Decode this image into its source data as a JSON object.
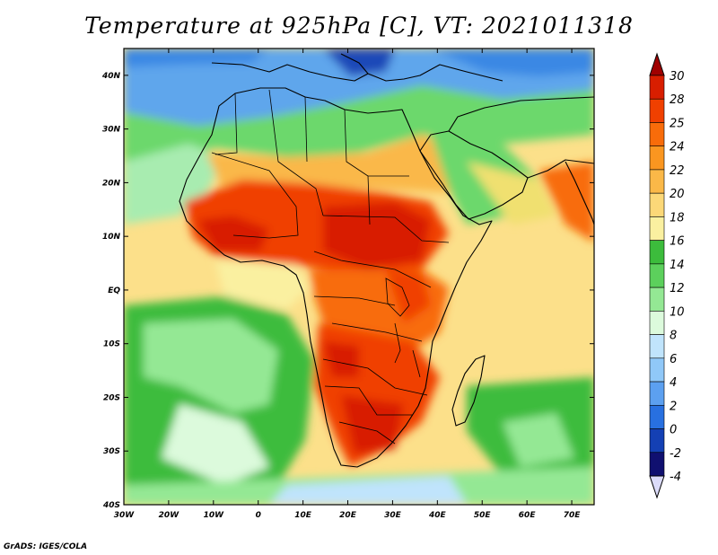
{
  "title": "Temperature at 925hPa [C], VT: 2021011318",
  "credit": "GrADS: IGES/COLA",
  "map": {
    "variable": "Temperature at 925hPa",
    "units": "C",
    "valid_time": "2021011318",
    "lon_range": [
      -30,
      75
    ],
    "lat_range": [
      -40,
      45
    ],
    "lon_ticks": [
      {
        "value": -30,
        "label": "30W"
      },
      {
        "value": -20,
        "label": "20W"
      },
      {
        "value": -10,
        "label": "10W"
      },
      {
        "value": 0,
        "label": "0"
      },
      {
        "value": 10,
        "label": "10E"
      },
      {
        "value": 20,
        "label": "20E"
      },
      {
        "value": 30,
        "label": "30E"
      },
      {
        "value": 40,
        "label": "40E"
      },
      {
        "value": 50,
        "label": "50E"
      },
      {
        "value": 60,
        "label": "60E"
      },
      {
        "value": 70,
        "label": "70E"
      }
    ],
    "lat_ticks": [
      {
        "value": 40,
        "label": "40N"
      },
      {
        "value": 30,
        "label": "30N"
      },
      {
        "value": 20,
        "label": "20N"
      },
      {
        "value": 10,
        "label": "10N"
      },
      {
        "value": 0,
        "label": "EQ"
      },
      {
        "value": -10,
        "label": "10S"
      },
      {
        "value": -20,
        "label": "20S"
      },
      {
        "value": -30,
        "label": "30S"
      },
      {
        "value": -40,
        "label": "40S"
      }
    ]
  },
  "colorbar": {
    "labels": [
      "30",
      "28",
      "25",
      "24",
      "22",
      "20",
      "18",
      "16",
      "14",
      "12",
      "10",
      "8",
      "6",
      "4",
      "2",
      "0",
      "-2",
      "-4"
    ],
    "colors": [
      "#a00000",
      "#d81e00",
      "#f04000",
      "#f86c0a",
      "#fa9620",
      "#fab848",
      "#fcd878",
      "#faf0a0",
      "#3cbc3c",
      "#5cd05c",
      "#94e894",
      "#dcfadc",
      "#c0e4fc",
      "#90c8f8",
      "#5ca0f0",
      "#2870e0",
      "#1440b4",
      "#101070",
      "#dcdcfa"
    ]
  }
}
